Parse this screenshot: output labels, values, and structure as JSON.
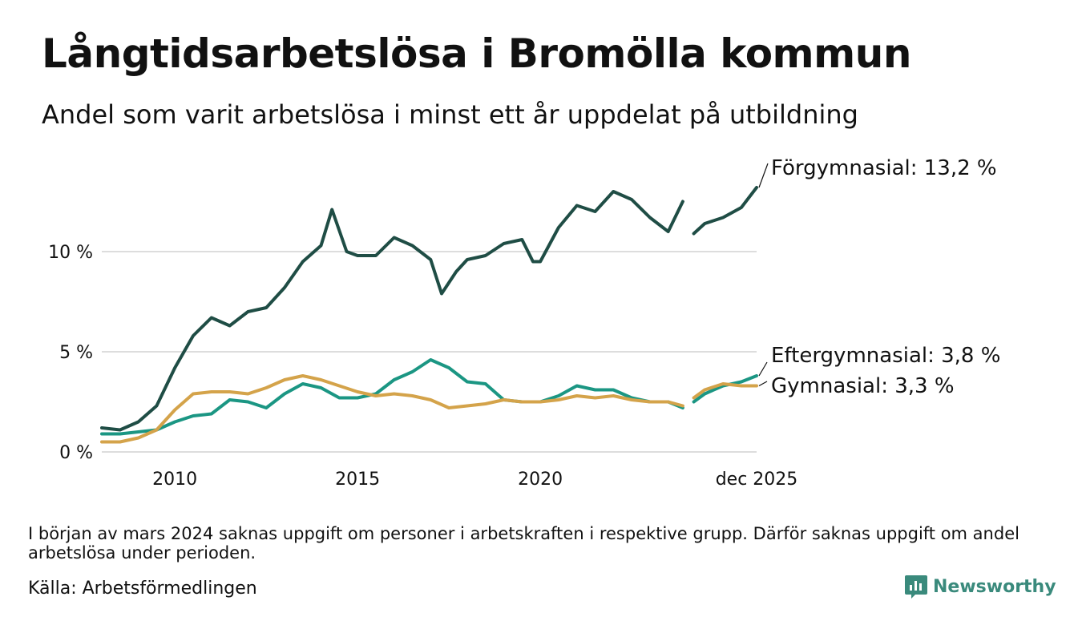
{
  "header": {
    "title": "Långtidsarbetslösa i Bromölla kommun",
    "subtitle": "Andel som varit arbetslösa i minst ett år uppdelat på utbildning"
  },
  "footer": {
    "note": "I början av mars 2024 saknas uppgift om personer i arbetskraften i respektive grupp. Därför saknas uppgift om andel arbetslösa under perioden.",
    "source": "Källa: Arbetsförmedlingen",
    "brand": "Newsworthy",
    "brand_icon": "newsworthy-logo-icon"
  },
  "colors": {
    "forgymnasial": "#1f4d45",
    "eftergymnasial": "#1b9683",
    "gymnasial": "#d4a34a",
    "grid": "#dddddd",
    "brand": "#3a8a7c"
  },
  "chart_data": {
    "type": "line",
    "title": "Långtidsarbetslösa i Bromölla kommun",
    "subtitle": "Andel som varit arbetslösa i minst ett år uppdelat på utbildning",
    "xlabel": "",
    "ylabel": "",
    "x_range": [
      2008.0,
      2025.92
    ],
    "ylim": [
      0,
      14
    ],
    "y_ticks": [
      0,
      5,
      10
    ],
    "y_tick_labels": [
      "0 %",
      "5 %",
      "10 %"
    ],
    "x_ticks": [
      2010,
      2015,
      2020,
      2025.92
    ],
    "x_tick_labels": [
      "2010",
      "2015",
      "2020",
      "dec 2025"
    ],
    "grid": true,
    "gap": [
      2023.9,
      2024.2
    ],
    "series": [
      {
        "name": "Förgymnasial",
        "label": "Förgymnasial: 13,2 %",
        "color": "#1f4d45",
        "x": [
          2008.0,
          2008.5,
          2009.0,
          2009.5,
          2010.0,
          2010.5,
          2011.0,
          2011.5,
          2012.0,
          2012.5,
          2013.0,
          2013.5,
          2014.0,
          2014.3,
          2014.7,
          2015.0,
          2015.5,
          2016.0,
          2016.5,
          2017.0,
          2017.3,
          2017.7,
          2018.0,
          2018.5,
          2019.0,
          2019.5,
          2019.8,
          2020.0,
          2020.5,
          2021.0,
          2021.5,
          2022.0,
          2022.5,
          2023.0,
          2023.5,
          2023.9,
          2024.2,
          2024.5,
          2025.0,
          2025.5,
          2025.92
        ],
        "values": [
          1.2,
          1.1,
          1.5,
          2.3,
          4.2,
          5.8,
          6.7,
          6.3,
          7.0,
          7.2,
          8.2,
          9.5,
          10.3,
          12.1,
          10.0,
          9.8,
          9.8,
          10.7,
          10.3,
          9.6,
          7.9,
          9.0,
          9.6,
          9.8,
          10.4,
          10.6,
          9.5,
          9.5,
          11.2,
          12.3,
          12.0,
          13.0,
          12.6,
          11.7,
          11.0,
          12.5,
          10.9,
          11.4,
          11.7,
          12.2,
          13.2
        ]
      },
      {
        "name": "Eftergymnasial",
        "label": "Eftergymnasial:  3,8 %",
        "color": "#1b9683",
        "x": [
          2008.0,
          2008.5,
          2009.0,
          2009.5,
          2010.0,
          2010.5,
          2011.0,
          2011.5,
          2012.0,
          2012.5,
          2013.0,
          2013.5,
          2014.0,
          2014.5,
          2015.0,
          2015.5,
          2016.0,
          2016.5,
          2017.0,
          2017.5,
          2018.0,
          2018.5,
          2019.0,
          2019.5,
          2020.0,
          2020.5,
          2021.0,
          2021.5,
          2022.0,
          2022.5,
          2023.0,
          2023.5,
          2023.9,
          2024.2,
          2024.5,
          2025.0,
          2025.5,
          2025.92
        ],
        "values": [
          0.9,
          0.9,
          1.0,
          1.1,
          1.5,
          1.8,
          1.9,
          2.6,
          2.5,
          2.2,
          2.9,
          3.4,
          3.2,
          2.7,
          2.7,
          2.9,
          3.6,
          4.0,
          4.6,
          4.2,
          3.5,
          3.4,
          2.6,
          2.5,
          2.5,
          2.8,
          3.3,
          3.1,
          3.1,
          2.7,
          2.5,
          2.5,
          2.2,
          2.5,
          2.9,
          3.3,
          3.5,
          3.8
        ]
      },
      {
        "name": "Gymnasial",
        "label": "Gymnasial:  3,3 %",
        "color": "#d4a34a",
        "x": [
          2008.0,
          2008.5,
          2009.0,
          2009.5,
          2010.0,
          2010.5,
          2011.0,
          2011.5,
          2012.0,
          2012.5,
          2013.0,
          2013.5,
          2014.0,
          2014.5,
          2015.0,
          2015.5,
          2016.0,
          2016.5,
          2017.0,
          2017.5,
          2018.0,
          2018.5,
          2019.0,
          2019.5,
          2020.0,
          2020.5,
          2021.0,
          2021.5,
          2022.0,
          2022.5,
          2023.0,
          2023.5,
          2023.9,
          2024.2,
          2024.5,
          2025.0,
          2025.5,
          2025.92
        ],
        "values": [
          0.5,
          0.5,
          0.7,
          1.1,
          2.1,
          2.9,
          3.0,
          3.0,
          2.9,
          3.2,
          3.6,
          3.8,
          3.6,
          3.3,
          3.0,
          2.8,
          2.9,
          2.8,
          2.6,
          2.2,
          2.3,
          2.4,
          2.6,
          2.5,
          2.5,
          2.6,
          2.8,
          2.7,
          2.8,
          2.6,
          2.5,
          2.5,
          2.3,
          2.7,
          3.1,
          3.4,
          3.3,
          3.3
        ]
      }
    ]
  }
}
